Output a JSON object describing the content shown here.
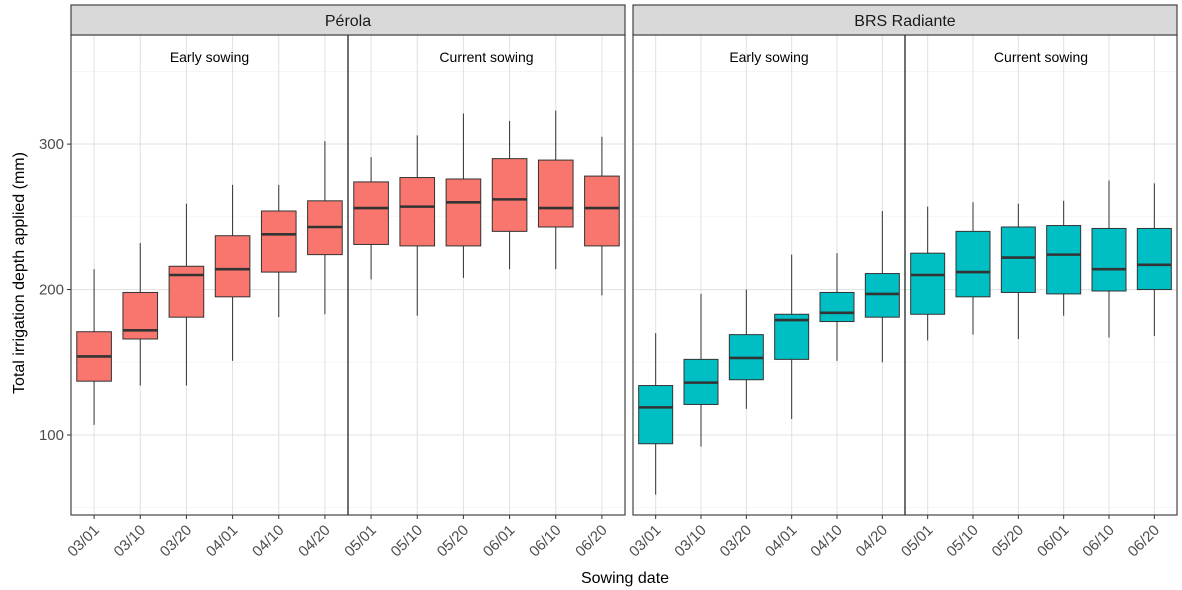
{
  "chart_data": {
    "type": "box",
    "xlabel": "Sowing date",
    "ylabel": "Total irrigation depth applied (mm)",
    "categories": [
      "03/01",
      "03/10",
      "03/20",
      "04/01",
      "04/10",
      "04/20",
      "05/01",
      "05/10",
      "05/20",
      "06/01",
      "06/10",
      "06/20"
    ],
    "ylim": [
      45,
      375
    ],
    "y_ticks": [
      100,
      200,
      300
    ],
    "grid": true,
    "legend": "none",
    "panels": [
      {
        "name": "Pérola",
        "color": "#F8766D",
        "annotations": [
          "Early sowing",
          "Current sowing"
        ],
        "boxes": [
          {
            "min": 107,
            "q1": 137,
            "median": 154,
            "q3": 171,
            "max": 214
          },
          {
            "min": 134,
            "q1": 166,
            "median": 172,
            "q3": 198,
            "max": 232
          },
          {
            "min": 134,
            "q1": 181,
            "median": 210,
            "q3": 216,
            "max": 259
          },
          {
            "min": 151,
            "q1": 195,
            "median": 214,
            "q3": 237,
            "max": 272
          },
          {
            "min": 181,
            "q1": 212,
            "median": 238,
            "q3": 254,
            "max": 272
          },
          {
            "min": 183,
            "q1": 224,
            "median": 243,
            "q3": 261,
            "max": 302
          },
          {
            "min": 207,
            "q1": 231,
            "median": 256,
            "q3": 274,
            "max": 291
          },
          {
            "min": 182,
            "q1": 230,
            "median": 257,
            "q3": 277,
            "max": 306
          },
          {
            "min": 208,
            "q1": 230,
            "median": 260,
            "q3": 276,
            "max": 321
          },
          {
            "min": 214,
            "q1": 240,
            "median": 262,
            "q3": 290,
            "max": 316
          },
          {
            "min": 214,
            "q1": 243,
            "median": 256,
            "q3": 289,
            "max": 323
          },
          {
            "min": 196,
            "q1": 230,
            "median": 256,
            "q3": 278,
            "max": 305
          }
        ]
      },
      {
        "name": "BRS Radiante",
        "color": "#00BFC4",
        "annotations": [
          "Early sowing",
          "Current sowing"
        ],
        "boxes": [
          {
            "min": 59,
            "q1": 94,
            "median": 119,
            "q3": 134,
            "max": 170
          },
          {
            "min": 92,
            "q1": 121,
            "median": 136,
            "q3": 152,
            "max": 197
          },
          {
            "min": 118,
            "q1": 138,
            "median": 153,
            "q3": 169,
            "max": 200
          },
          {
            "min": 111,
            "q1": 152,
            "median": 179,
            "q3": 183,
            "max": 224
          },
          {
            "min": 151,
            "q1": 178,
            "median": 184,
            "q3": 198,
            "max": 225
          },
          {
            "min": 150,
            "q1": 181,
            "median": 197,
            "q3": 211,
            "max": 254
          },
          {
            "min": 165,
            "q1": 183,
            "median": 210,
            "q3": 225,
            "max": 257
          },
          {
            "min": 169,
            "q1": 195,
            "median": 212,
            "q3": 240,
            "max": 260
          },
          {
            "min": 166,
            "q1": 198,
            "median": 222,
            "q3": 243,
            "max": 259
          },
          {
            "min": 182,
            "q1": 197,
            "median": 224,
            "q3": 244,
            "max": 261
          },
          {
            "min": 167,
            "q1": 199,
            "median": 214,
            "q3": 242,
            "max": 275
          },
          {
            "min": 168,
            "q1": 200,
            "median": 217,
            "q3": 242,
            "max": 273
          }
        ]
      }
    ]
  }
}
